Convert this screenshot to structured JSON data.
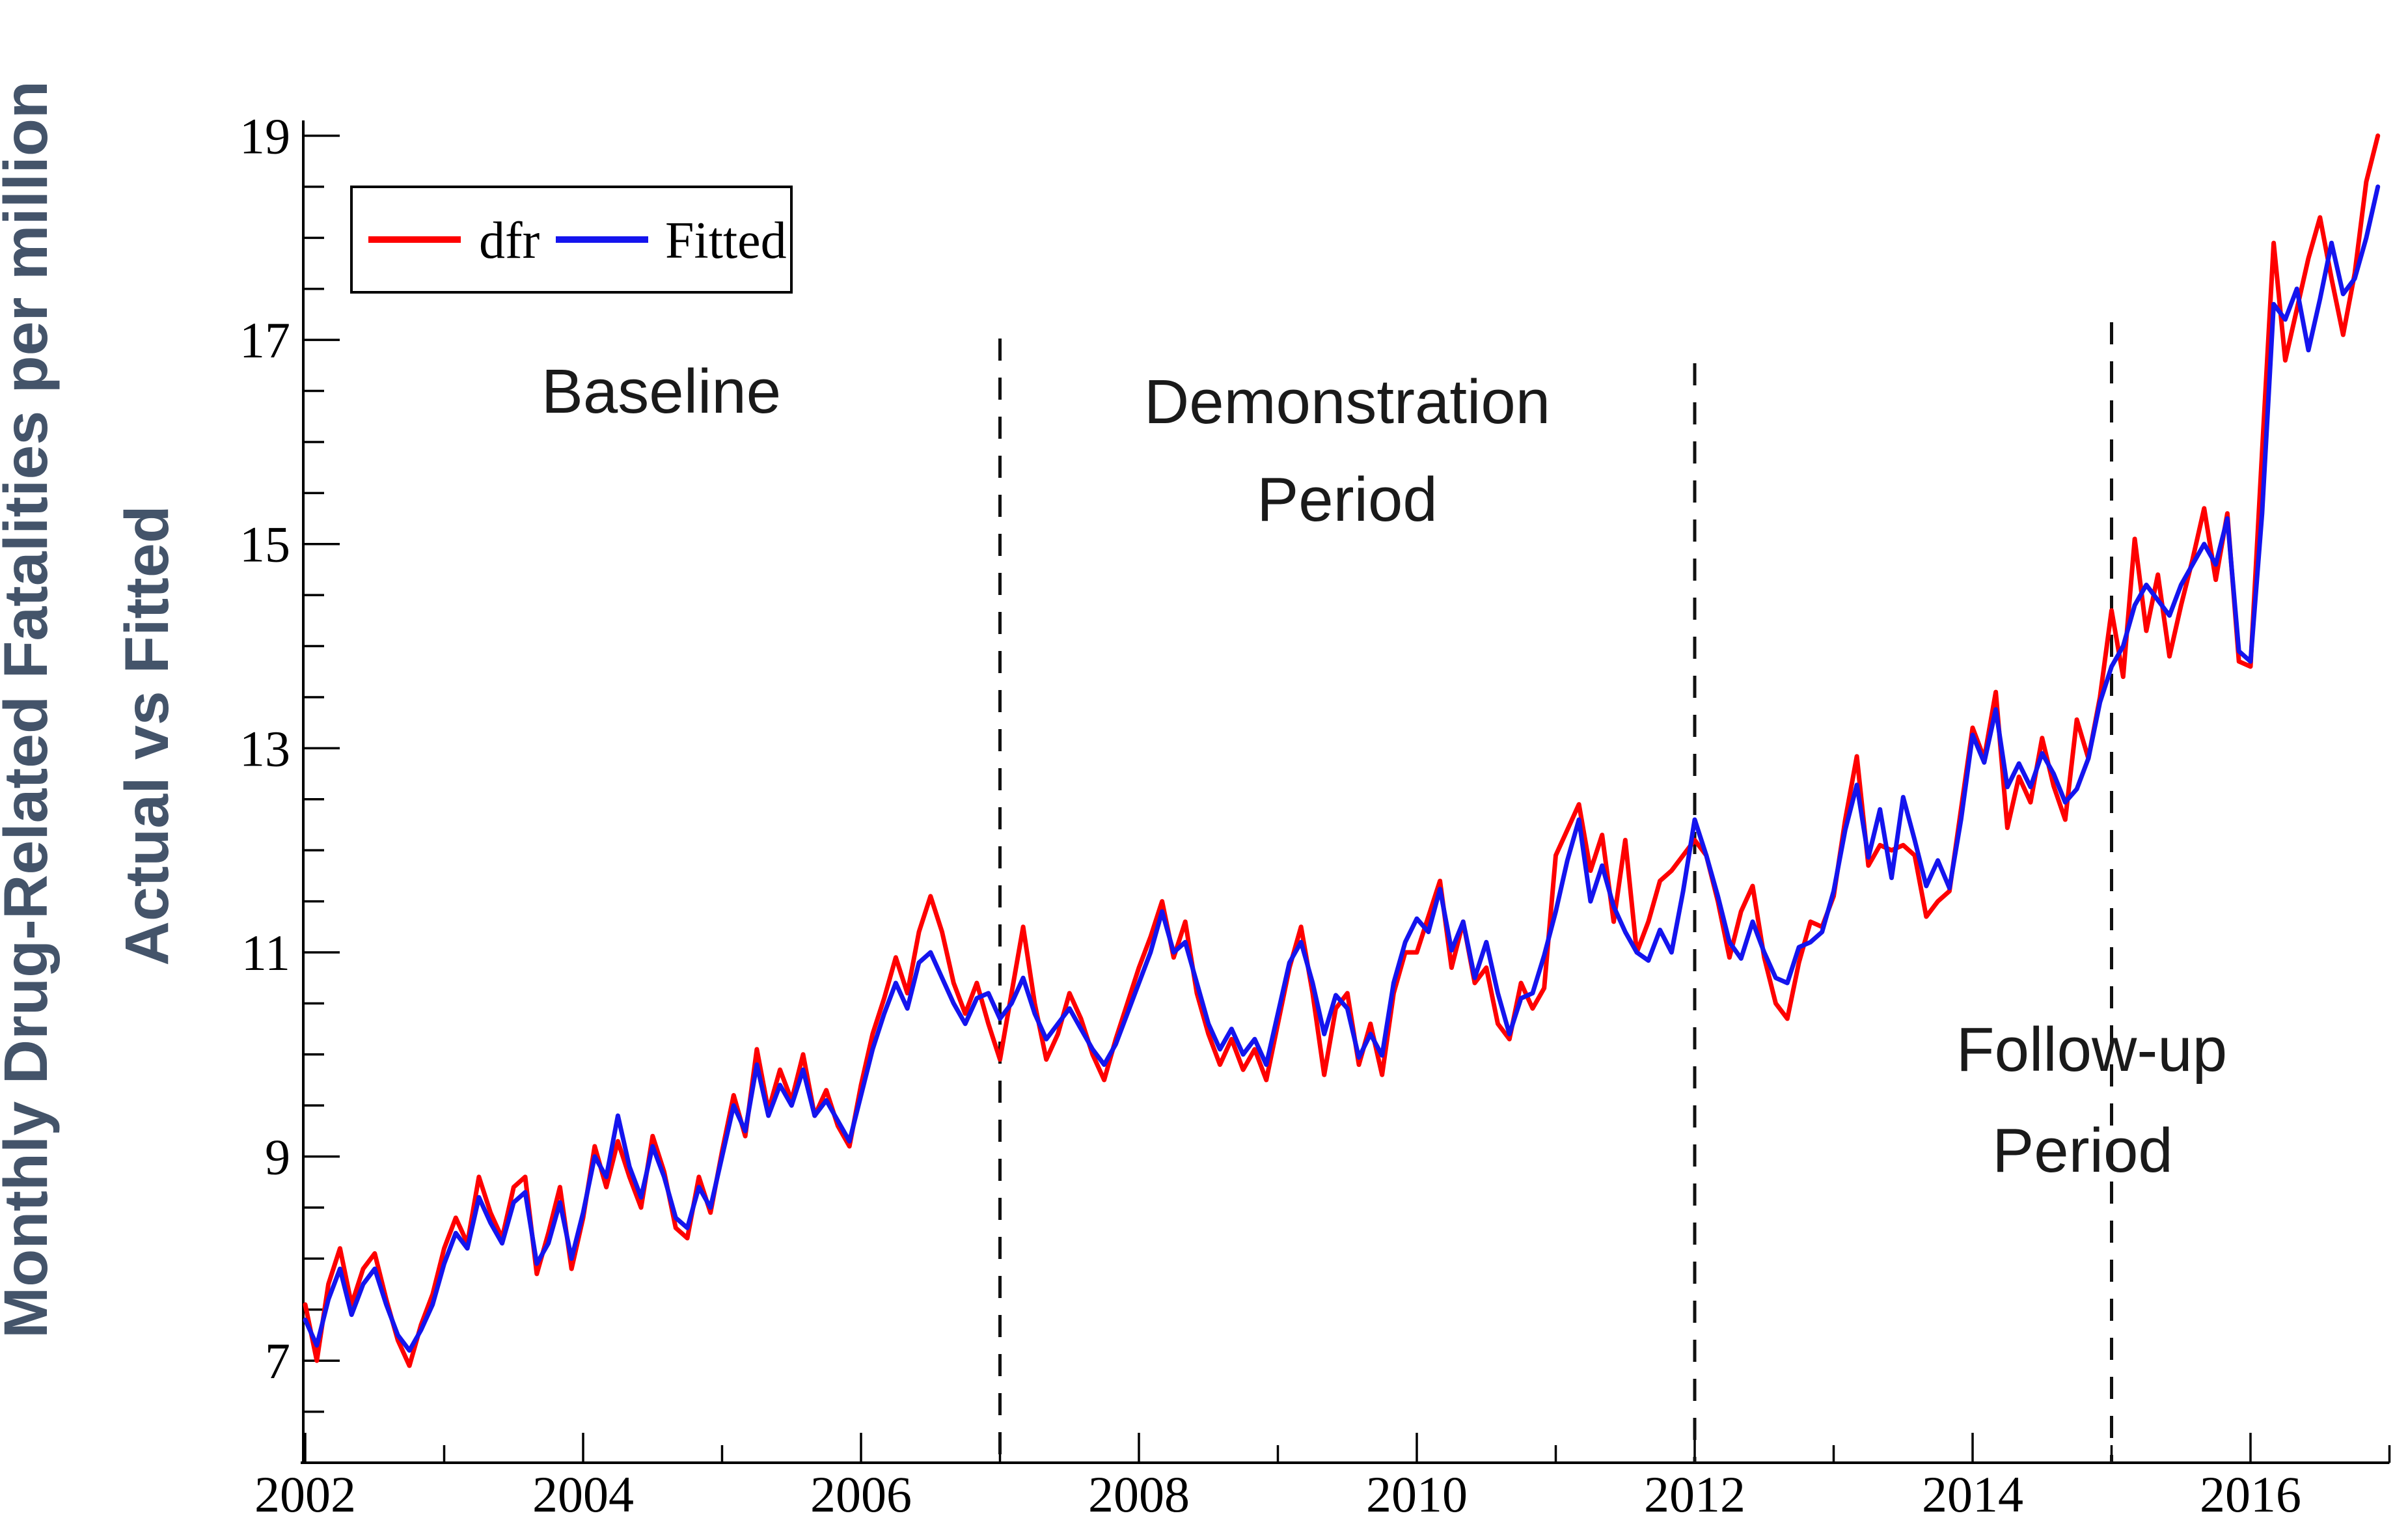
{
  "chart_data": {
    "type": "line",
    "title": "",
    "ylabel_line1": "Monthly Drug-Related  Fatalities per million",
    "ylabel_line2": "Actual vs Fitted",
    "x_start": 2002.0,
    "x_step_months": 1,
    "x_range": [
      2002,
      2017
    ],
    "y_range": [
      6.0,
      19.15
    ],
    "grid": false,
    "x_ticks_major": [
      2002,
      2004,
      2006,
      2008,
      2010,
      2012,
      2014,
      2016
    ],
    "x_ticks_minor": [
      2003,
      2005,
      2007,
      2009,
      2011,
      2013,
      2015,
      2017
    ],
    "y_ticks_major": [
      7,
      9,
      11,
      13,
      15,
      17,
      19
    ],
    "y_ticks_minor": [
      6.5,
      7.5,
      8,
      8.5,
      9.5,
      10,
      10.5,
      11.5,
      12,
      12.5,
      13.5,
      14,
      14.5,
      15.5,
      16,
      16.5,
      17.5,
      18,
      18.5
    ],
    "period_dividers": [
      2007,
      2012,
      2015
    ],
    "legend": {
      "position": "top-left",
      "entries": [
        "dfr",
        "Fitted"
      ]
    },
    "annotations": [
      {
        "line1": "Baseline"
      },
      {
        "line1": "Demonstration",
        "line2": "Period"
      },
      {
        "line1": "Follow-up",
        "line2": "Period"
      }
    ],
    "series": [
      {
        "name": "dfr",
        "color": "#fe0000",
        "values": [
          7.55,
          7.0,
          7.75,
          8.1,
          7.55,
          7.9,
          8.05,
          7.6,
          7.2,
          6.95,
          7.35,
          7.65,
          8.1,
          8.4,
          8.15,
          8.8,
          8.45,
          8.2,
          8.7,
          8.8,
          7.85,
          8.25,
          8.7,
          7.9,
          8.4,
          9.1,
          8.7,
          9.15,
          8.8,
          8.5,
          9.2,
          8.85,
          8.3,
          8.2,
          8.8,
          8.45,
          9.05,
          9.6,
          9.2,
          10.05,
          9.45,
          9.85,
          9.55,
          10.0,
          9.4,
          9.65,
          9.3,
          9.1,
          9.7,
          10.2,
          10.55,
          10.95,
          10.6,
          11.2,
          11.55,
          11.2,
          10.7,
          10.4,
          10.7,
          10.3,
          9.95,
          10.6,
          11.25,
          10.5,
          9.95,
          10.2,
          10.6,
          10.35,
          10.0,
          9.75,
          10.15,
          10.5,
          10.85,
          11.15,
          11.5,
          10.95,
          11.3,
          10.6,
          10.2,
          9.9,
          10.15,
          9.85,
          10.05,
          9.75,
          10.3,
          10.85,
          11.25,
          10.6,
          9.8,
          10.45,
          10.6,
          9.9,
          10.3,
          9.8,
          10.6,
          11.0,
          11.0,
          11.35,
          11.7,
          10.85,
          11.3,
          10.7,
          10.85,
          10.3,
          10.15,
          10.7,
          10.45,
          10.65,
          11.95,
          12.2,
          12.45,
          11.8,
          12.15,
          11.3,
          12.1,
          11.0,
          11.3,
          11.7,
          11.8,
          11.95,
          12.1,
          11.95,
          11.5,
          10.95,
          11.4,
          11.65,
          10.95,
          10.5,
          10.35,
          10.9,
          11.3,
          11.25,
          11.55,
          12.3,
          12.92,
          11.85,
          12.05,
          12.0,
          12.05,
          11.95,
          11.35,
          11.5,
          11.6,
          12.4,
          13.2,
          12.9,
          13.55,
          12.22,
          12.72,
          12.47,
          13.1,
          12.63,
          12.3,
          13.28,
          12.9,
          13.5,
          14.35,
          13.7,
          15.05,
          14.15,
          14.7,
          13.9,
          14.4,
          14.85,
          15.35,
          14.65,
          15.3,
          13.85,
          13.8,
          15.9,
          17.95,
          16.8,
          17.3,
          17.8,
          18.2,
          17.6,
          17.05,
          17.65,
          18.55,
          19.0
        ]
      },
      {
        "name": "Fitted",
        "color": "#1414ee",
        "values": [
          7.4,
          7.15,
          7.6,
          7.9,
          7.45,
          7.75,
          7.9,
          7.55,
          7.25,
          7.1,
          7.3,
          7.55,
          7.95,
          8.25,
          8.1,
          8.6,
          8.35,
          8.15,
          8.55,
          8.65,
          7.95,
          8.15,
          8.55,
          8.0,
          8.45,
          9.0,
          8.8,
          9.4,
          8.9,
          8.6,
          9.1,
          8.8,
          8.4,
          8.3,
          8.7,
          8.5,
          9.0,
          9.5,
          9.25,
          9.9,
          9.4,
          9.7,
          9.5,
          9.85,
          9.4,
          9.55,
          9.35,
          9.15,
          9.6,
          10.05,
          10.4,
          10.7,
          10.45,
          10.9,
          11.0,
          10.75,
          10.5,
          10.3,
          10.55,
          10.6,
          10.35,
          10.5,
          10.75,
          10.4,
          10.15,
          10.3,
          10.45,
          10.25,
          10.05,
          9.9,
          10.1,
          10.4,
          10.7,
          11.0,
          11.4,
          11.0,
          11.1,
          10.7,
          10.3,
          10.05,
          10.25,
          10.0,
          10.15,
          9.9,
          10.4,
          10.9,
          11.1,
          10.7,
          10.2,
          10.58,
          10.45,
          9.97,
          10.2,
          9.99,
          10.7,
          11.1,
          11.33,
          11.2,
          11.62,
          11.02,
          11.3,
          10.75,
          11.1,
          10.6,
          10.2,
          10.55,
          10.6,
          10.97,
          11.4,
          11.9,
          12.3,
          11.5,
          11.85,
          11.45,
          11.2,
          11.0,
          10.92,
          11.22,
          11.0,
          11.6,
          12.3,
          11.95,
          11.55,
          11.1,
          10.94,
          11.3,
          11.0,
          10.75,
          10.7,
          11.05,
          11.1,
          11.2,
          11.6,
          12.2,
          12.64,
          11.93,
          12.4,
          11.73,
          12.52,
          12.1,
          11.65,
          11.9,
          11.63,
          12.3,
          13.13,
          12.86,
          13.38,
          12.62,
          12.85,
          12.62,
          12.95,
          12.75,
          12.47,
          12.6,
          12.9,
          13.45,
          13.8,
          14.0,
          14.4,
          14.6,
          14.45,
          14.3,
          14.6,
          14.8,
          15.0,
          14.8,
          15.25,
          13.95,
          13.85,
          15.3,
          17.35,
          17.2,
          17.5,
          16.9,
          17.4,
          17.95,
          17.45,
          17.6,
          18.0,
          18.5
        ]
      }
    ]
  }
}
